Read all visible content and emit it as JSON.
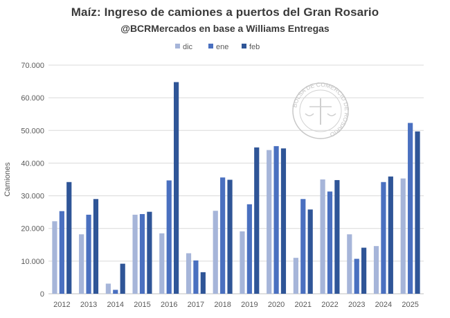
{
  "chart_data": {
    "type": "bar",
    "title": "Maíz: Ingreso de camiones a puertos del Gran Rosario",
    "subtitle": "@BCRMercados en base a Williams Entregas",
    "xlabel": "",
    "ylabel": "Camiones",
    "ylim": [
      0,
      70000
    ],
    "yticks": [
      "0",
      "10.000",
      "20.000",
      "30.000",
      "40.000",
      "50.000",
      "60.000",
      "70.000"
    ],
    "grid": true,
    "legend_position": "top",
    "categories": [
      "2012",
      "2013",
      "2014",
      "2015",
      "2016",
      "2017",
      "2018",
      "2019",
      "2020",
      "2021",
      "2022",
      "2023",
      "2024",
      "2025"
    ],
    "series": [
      {
        "name": "dic",
        "color": "#a6b5d9",
        "values": [
          22200,
          18200,
          3100,
          24200,
          18500,
          12400,
          25400,
          19100,
          44000,
          11000,
          35000,
          18200,
          14600,
          35300
        ]
      },
      {
        "name": "ene",
        "color": "#4a70c0",
        "values": [
          25300,
          24200,
          1200,
          24400,
          34700,
          10200,
          35600,
          27400,
          45200,
          29000,
          31300,
          10700,
          34200,
          52300
        ]
      },
      {
        "name": "feb",
        "color": "#2f5597",
        "values": [
          34200,
          29000,
          9200,
          25100,
          64800,
          6600,
          34900,
          44800,
          44500,
          25800,
          34800,
          14100,
          35900,
          49700
        ]
      }
    ],
    "watermark": "BOLSA DE COMERCIO DE ROSARIO"
  }
}
